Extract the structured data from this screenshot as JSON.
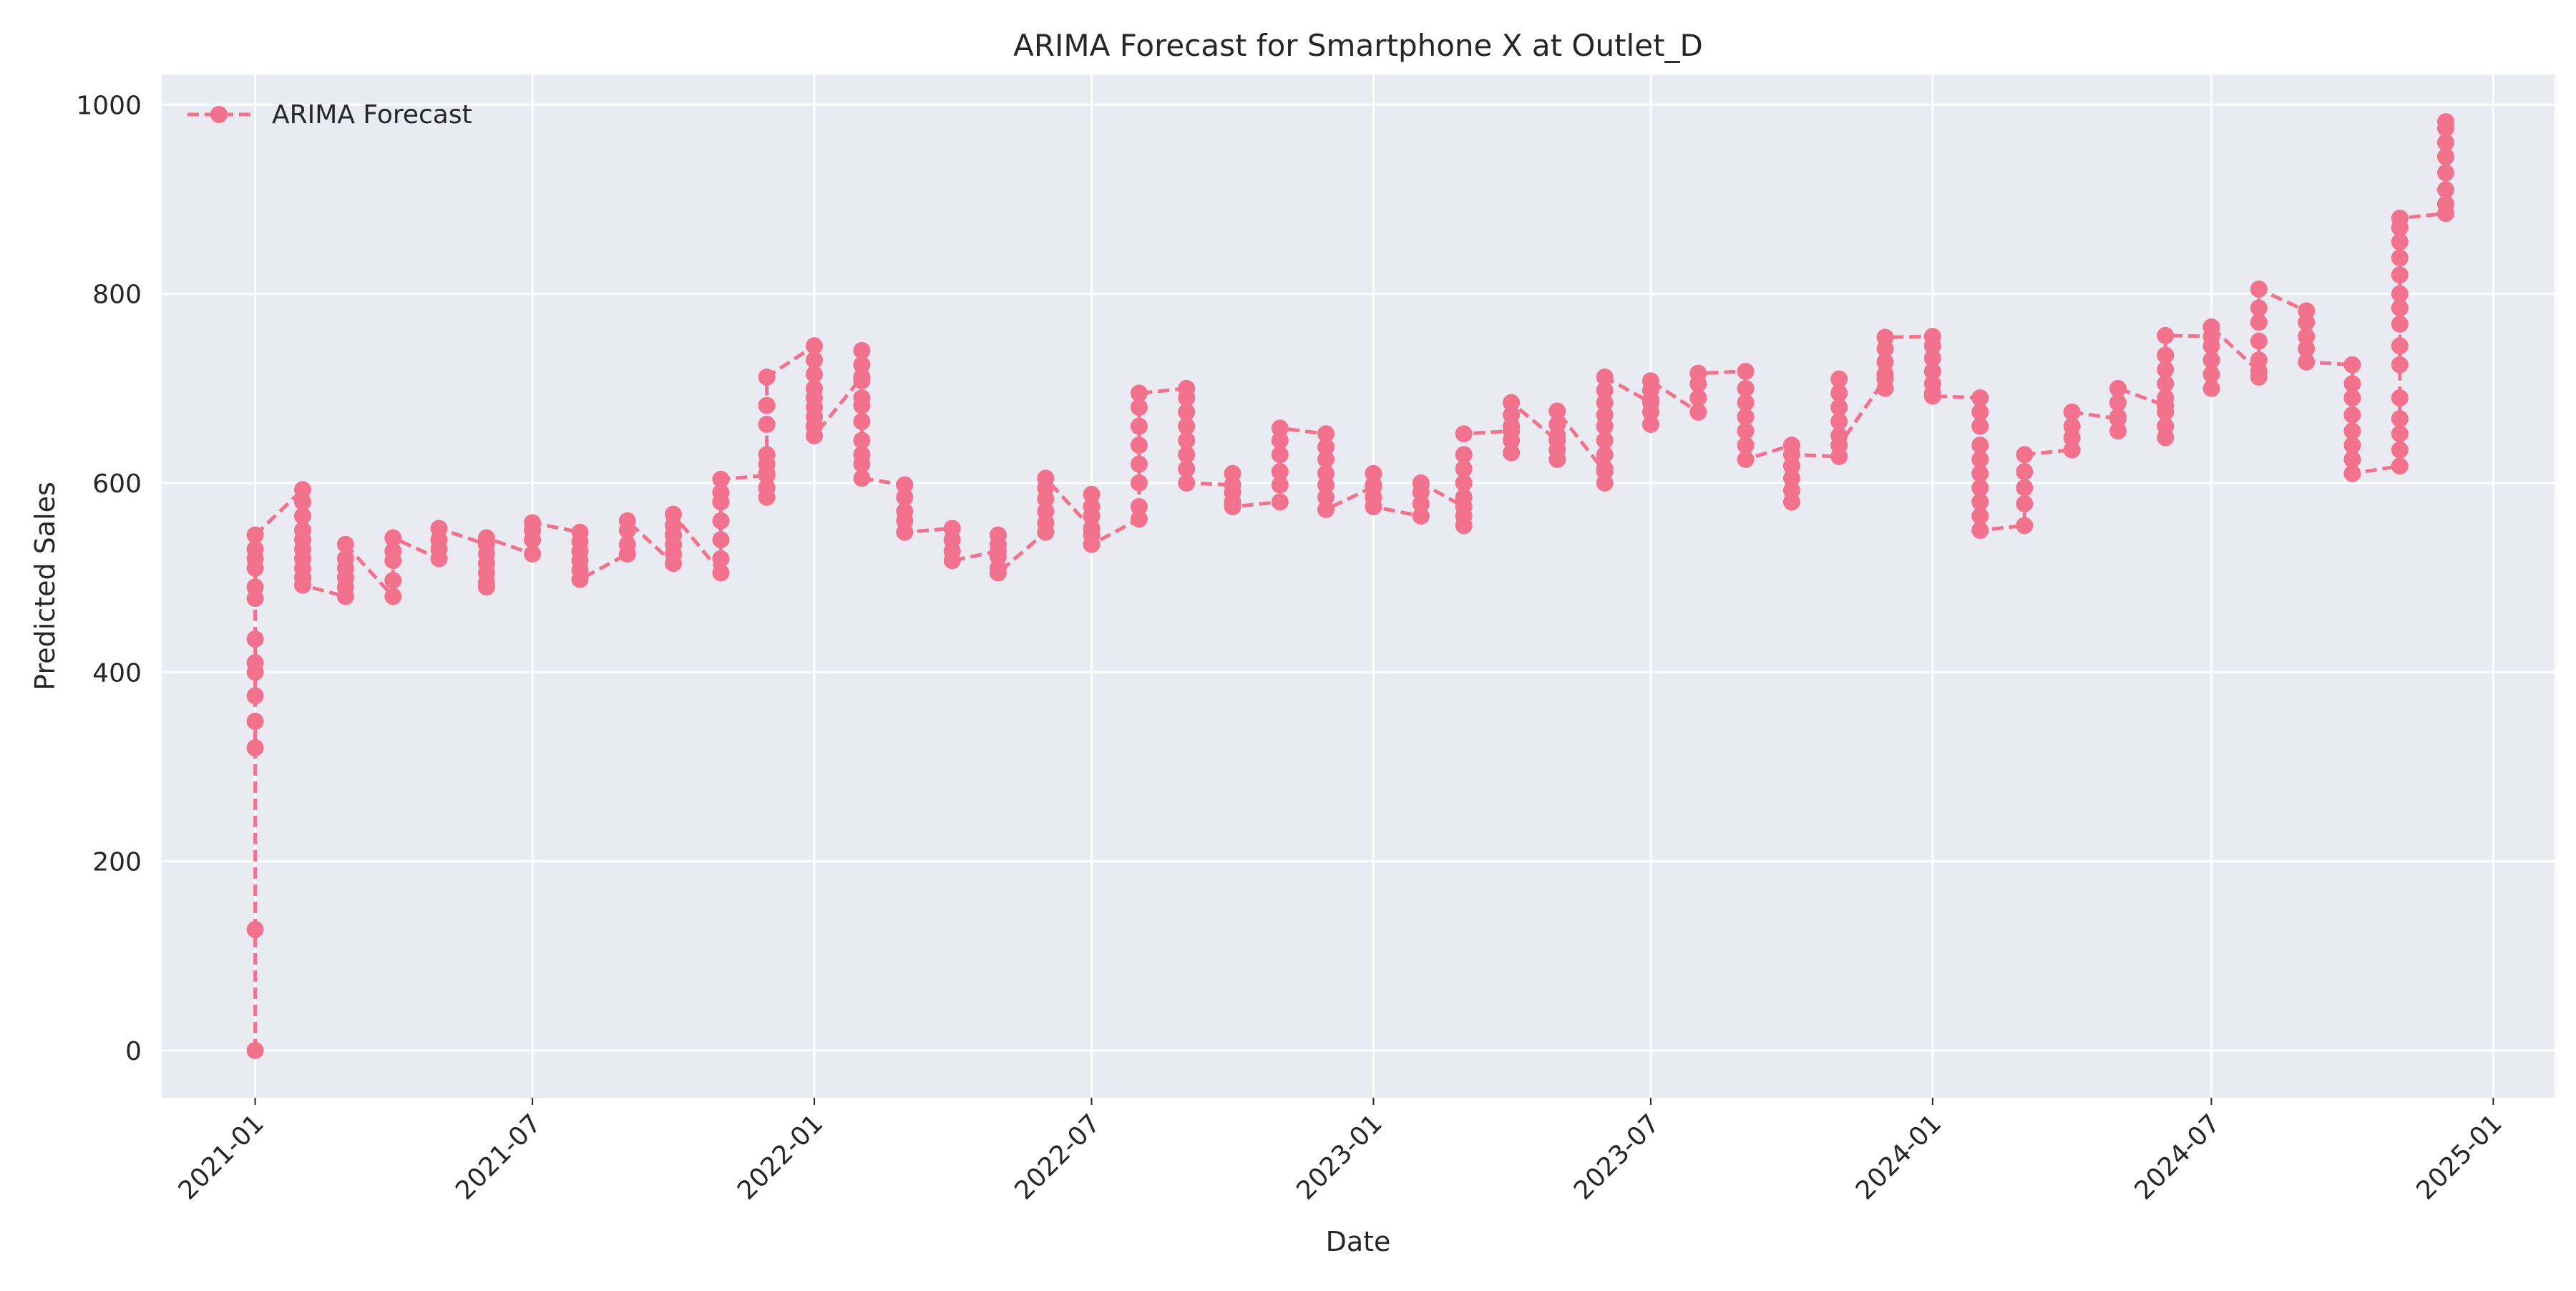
{
  "chart_data": {
    "type": "line",
    "title": "ARIMA Forecast for Smartphone X at Outlet_D",
    "xlabel": "Date",
    "ylabel": "Predicted Sales",
    "xlim": [
      "2020-11-01",
      "2025-02-10"
    ],
    "ylim": [
      -50,
      1032
    ],
    "grid": true,
    "legend_position": "top-left",
    "x_ticks": [
      "2021-01",
      "2021-07",
      "2022-01",
      "2022-07",
      "2023-01",
      "2023-07",
      "2024-01",
      "2024-07",
      "2025-01"
    ],
    "y_ticks": [
      0,
      200,
      400,
      600,
      800,
      1000
    ],
    "colors": {
      "series": "#f2718c",
      "plot_background": "#eaeaf2",
      "grid": "#ffffff"
    },
    "series": [
      {
        "name": "ARIMA Forecast",
        "style": "dashed-line-with-circle-markers",
        "clusters": [
          {
            "date": "2021-01-01",
            "values": [
              0,
              128,
              320,
              348,
              375,
              400,
              410,
              435,
              478,
              490,
              510,
              520,
              530,
              545
            ]
          },
          {
            "date": "2021-02-01",
            "values": [
              593,
              580,
              565,
              550,
              540,
              530,
              520,
              510,
              500,
              492
            ]
          },
          {
            "date": "2021-03-01",
            "values": [
              480,
              490,
              500,
              510,
              520,
              535
            ]
          },
          {
            "date": "2021-04-01",
            "values": [
              480,
              497,
              518,
              528,
              542
            ]
          },
          {
            "date": "2021-05-01",
            "values": [
              520,
              530,
              540,
              552
            ]
          },
          {
            "date": "2021-06-01",
            "values": [
              535,
              525,
              515,
              505,
              495,
              490,
              542
            ]
          },
          {
            "date": "2021-07-01",
            "values": [
              525,
              540,
              550,
              558
            ]
          },
          {
            "date": "2021-08-01",
            "values": [
              548,
              538,
              528,
              518,
              508,
              498
            ]
          },
          {
            "date": "2021-09-01",
            "values": [
              525,
              535,
              550,
              560
            ]
          },
          {
            "date": "2021-10-01",
            "values": [
              515,
              525,
              535,
              545,
              555,
              567
            ]
          },
          {
            "date": "2021-11-01",
            "values": [
              505,
              520,
              540,
              560,
              580,
              590,
              604
            ]
          },
          {
            "date": "2021-12-01",
            "values": [
              608,
              585,
              595,
              610,
              620,
              630,
              662,
              682,
              712
            ]
          },
          {
            "date": "2022-01-01",
            "values": [
              745,
              730,
              715,
              700,
              690,
              680,
              670,
              660,
              650
            ]
          },
          {
            "date": "2022-02-01",
            "values": [
              712,
              740,
              725,
              708,
              690,
              682,
              665,
              645,
              630,
              620,
              605
            ]
          },
          {
            "date": "2022-03-01",
            "values": [
              598,
              585,
              570,
              560,
              548
            ]
          },
          {
            "date": "2022-04-01",
            "values": [
              552,
              540,
              528,
              518
            ]
          },
          {
            "date": "2022-05-01",
            "values": [
              528,
              545,
              535,
              522,
              510,
              505
            ]
          },
          {
            "date": "2022-06-01",
            "values": [
              548,
              558,
              570,
              583,
              595,
              605
            ]
          },
          {
            "date": "2022-07-01",
            "values": [
              552,
              565,
              575,
              588,
              545,
              535
            ]
          },
          {
            "date": "2022-08-01",
            "values": [
              562,
              575,
              600,
              620,
              640,
              660,
              680,
              695
            ]
          },
          {
            "date": "2022-09-01",
            "values": [
              700,
              690,
              675,
              660,
              645,
              630,
              615,
              600
            ]
          },
          {
            "date": "2022-10-01",
            "values": [
              598,
              610,
              590,
              580,
              575
            ]
          },
          {
            "date": "2022-11-01",
            "values": [
              580,
              598,
              612,
              630,
              645,
              658
            ]
          },
          {
            "date": "2022-12-01",
            "values": [
              652,
              638,
              625,
              610,
              598,
              585,
              572
            ]
          },
          {
            "date": "2023-01-01",
            "values": [
              596,
              610,
              598,
              585,
              575
            ]
          },
          {
            "date": "2023-02-01",
            "values": [
              565,
              578,
              590,
              600
            ]
          },
          {
            "date": "2023-03-01",
            "values": [
              575,
              555,
              565,
              585,
              600,
              615,
              630,
              652
            ]
          },
          {
            "date": "2023-04-01",
            "values": [
              655,
              632,
              645,
              660,
              672,
              685
            ]
          },
          {
            "date": "2023-05-01",
            "values": [
              645,
              625,
              635,
              650,
              662,
              676
            ]
          },
          {
            "date": "2023-06-01",
            "values": [
              612,
              600,
              615,
              630,
              645,
              660,
              672,
              685,
              698,
              712
            ]
          },
          {
            "date": "2023-07-01",
            "values": [
              685,
              662,
              675,
              688,
              698,
              708
            ]
          },
          {
            "date": "2023-08-01",
            "values": [
              675,
              690,
              705,
              716
            ]
          },
          {
            "date": "2023-09-01",
            "values": [
              718,
              700,
              685,
              670,
              655,
              640,
              625
            ]
          },
          {
            "date": "2023-10-01",
            "values": [
              640,
              580,
              592,
              605,
              618,
              630
            ]
          },
          {
            "date": "2023-11-01",
            "values": [
              628,
              710,
              695,
              680,
              665,
              650,
              640
            ]
          },
          {
            "date": "2023-12-01",
            "values": [
              710,
              700,
              715,
              728,
              742,
              754
            ]
          },
          {
            "date": "2024-01-01",
            "values": [
              755,
              745,
              732,
              718,
              705,
              695,
              692
            ]
          },
          {
            "date": "2024-02-01",
            "values": [
              690,
              675,
              660,
              640,
              625,
              610,
              595,
              580,
              565,
              550
            ]
          },
          {
            "date": "2024-03-01",
            "values": [
              555,
              578,
              595,
              612,
              630
            ]
          },
          {
            "date": "2024-04-01",
            "values": [
              635,
              648,
              660,
              675
            ]
          },
          {
            "date": "2024-05-01",
            "values": [
              668,
              655,
              670,
              685,
              700
            ]
          },
          {
            "date": "2024-06-01",
            "values": [
              682,
              648,
              660,
              675,
              690,
              705,
              720,
              735,
              756
            ]
          },
          {
            "date": "2024-07-01",
            "values": [
              755,
              700,
              715,
              730,
              745,
              765
            ]
          },
          {
            "date": "2024-08-01",
            "values": [
              718,
              712,
              730,
              750,
              770,
              785,
              805
            ]
          },
          {
            "date": "2024-09-01",
            "values": [
              782,
              770,
              755,
              742,
              728
            ]
          },
          {
            "date": "2024-10-01",
            "values": [
              725,
              705,
              690,
              672,
              655,
              640,
              625,
              610
            ]
          },
          {
            "date": "2024-11-01",
            "values": [
              618,
              635,
              652,
              668,
              690,
              725,
              745,
              768,
              785,
              800,
              820,
              838,
              855,
              870,
              880
            ]
          },
          {
            "date": "2024-12-01",
            "values": [
              885,
              895,
              910,
              928,
              945,
              960,
              975,
              982
            ]
          }
        ]
      }
    ]
  }
}
